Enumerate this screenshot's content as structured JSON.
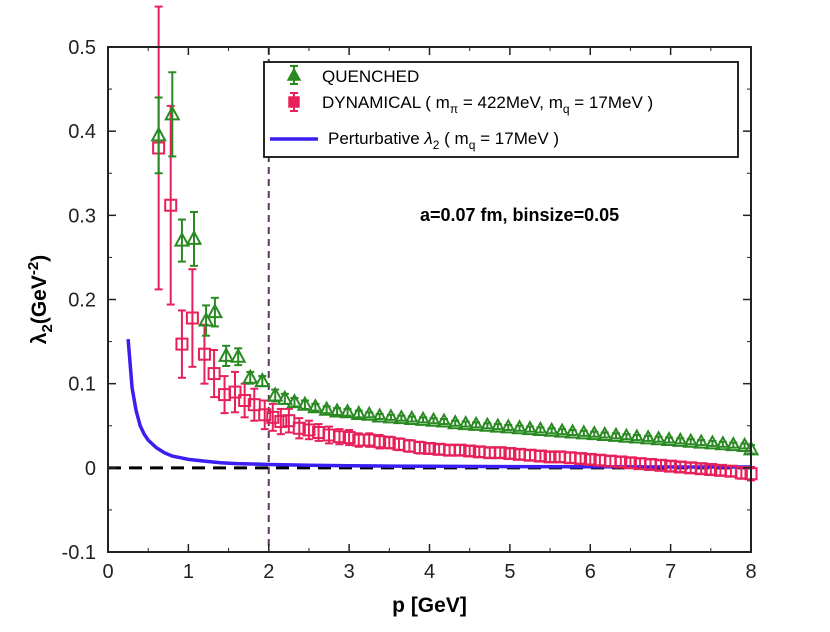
{
  "chart_data": {
    "type": "scatter",
    "title": "",
    "xlabel": "p [GeV]",
    "ylabel_main": "λ",
    "ylabel_sub": "2",
    "ylabel_unit_open": "(GeV",
    "ylabel_unit_exp": "-2",
    "ylabel_unit_close": ")",
    "xlim": [
      0,
      8
    ],
    "ylim": [
      -0.1,
      0.5
    ],
    "x_ticks": [
      0,
      1,
      2,
      3,
      4,
      5,
      6,
      7,
      8
    ],
    "y_ticks": [
      -0.1,
      0,
      0.1,
      0.2,
      0.3,
      0.4,
      0.5
    ],
    "y_tick_labels": [
      "-0.1",
      "0",
      "0.1",
      "0.2",
      "0.3",
      "0.4",
      "0.5"
    ],
    "grid": false,
    "legend_position": "top-right",
    "annotation": "a=0.07 fm, binsize=0.05",
    "vertical_reference_x": 2,
    "horizontal_reference_y": 0,
    "colors": {
      "quenched": "#2a8a22",
      "dynamical": "#e8205a",
      "perturbative": "#3a1ef2",
      "zero_line": "#000000",
      "vline": "#5a3a5a"
    },
    "legend": {
      "quenched": "QUENCHED",
      "dynamical_prefix": "DYNAMICAL  ( m",
      "dynamical_sub1": "π",
      "dynamical_mid": " = 422MeV, m",
      "dynamical_sub2": "q",
      "dynamical_suffix": " = 17MeV )",
      "perturbative_prefix": "Perturbative ",
      "perturbative_lambda": "λ",
      "perturbative_sub": "2",
      "perturbative_mid": " ( m",
      "perturbative_sub2": "q",
      "perturbative_suffix": " = 17MeV )"
    },
    "series": [
      {
        "name": "QUENCHED",
        "marker": "triangle",
        "x": [
          0.63,
          0.8,
          0.92,
          1.07,
          1.22,
          1.33,
          1.47,
          1.62,
          1.77,
          1.92,
          2.08,
          2.2,
          2.32,
          2.45,
          2.58,
          2.72,
          2.85,
          2.98,
          3.12,
          3.25,
          3.38,
          3.52,
          3.65,
          3.78,
          3.92,
          4.05,
          4.18,
          4.32,
          4.45,
          4.58,
          4.72,
          4.85,
          4.98,
          5.12,
          5.25,
          5.38,
          5.52,
          5.65,
          5.78,
          5.92,
          6.05,
          6.18,
          6.32,
          6.45,
          6.58,
          6.72,
          6.85,
          6.98,
          7.12,
          7.25,
          7.38,
          7.52,
          7.65,
          7.78,
          7.92,
          8.0
        ],
        "y": [
          0.395,
          0.42,
          0.27,
          0.272,
          0.175,
          0.185,
          0.133,
          0.132,
          0.107,
          0.103,
          0.086,
          0.082,
          0.078,
          0.075,
          0.072,
          0.069,
          0.067,
          0.066,
          0.064,
          0.063,
          0.061,
          0.06,
          0.059,
          0.058,
          0.057,
          0.056,
          0.055,
          0.053,
          0.052,
          0.051,
          0.05,
          0.049,
          0.048,
          0.047,
          0.046,
          0.045,
          0.044,
          0.043,
          0.042,
          0.041,
          0.04,
          0.039,
          0.038,
          0.037,
          0.036,
          0.035,
          0.034,
          0.033,
          0.032,
          0.031,
          0.03,
          0.029,
          0.028,
          0.027,
          0.026,
          0.022
        ],
        "err": [
          0.045,
          0.05,
          0.025,
          0.032,
          0.018,
          0.017,
          0.012,
          0.01,
          0.007,
          0.006,
          0.007,
          0.006,
          0.005,
          0.005,
          0.004,
          0.004,
          0.004,
          0.004,
          0.004,
          0.003,
          0.003,
          0.003,
          0.003,
          0.003,
          0.003,
          0.003,
          0.003,
          0.003,
          0.003,
          0.003,
          0.003,
          0.003,
          0.003,
          0.003,
          0.003,
          0.003,
          0.003,
          0.003,
          0.003,
          0.003,
          0.003,
          0.003,
          0.003,
          0.003,
          0.003,
          0.003,
          0.003,
          0.003,
          0.003,
          0.003,
          0.003,
          0.003,
          0.003,
          0.003,
          0.003,
          0.005
        ]
      },
      {
        "name": "DYNAMICAL",
        "marker": "square",
        "x": [
          0.63,
          0.78,
          0.92,
          1.05,
          1.2,
          1.32,
          1.45,
          1.58,
          1.7,
          1.82,
          1.95,
          2.05,
          2.15,
          2.25,
          2.38,
          2.5,
          2.62,
          2.75,
          2.88,
          3.0,
          3.12,
          3.25,
          3.38,
          3.5,
          3.62,
          3.75,
          3.88,
          4.0,
          4.12,
          4.25,
          4.38,
          4.5,
          4.62,
          4.75,
          4.88,
          5.0,
          5.12,
          5.25,
          5.38,
          5.5,
          5.62,
          5.75,
          5.88,
          6.0,
          6.12,
          6.25,
          6.38,
          6.5,
          6.62,
          6.75,
          6.88,
          7.0,
          7.12,
          7.25,
          7.38,
          7.5,
          7.62,
          7.75,
          7.88,
          8.0
        ],
        "y": [
          0.38,
          0.312,
          0.147,
          0.178,
          0.135,
          0.112,
          0.087,
          0.09,
          0.08,
          0.075,
          0.063,
          0.06,
          0.055,
          0.056,
          0.047,
          0.045,
          0.042,
          0.039,
          0.037,
          0.036,
          0.033,
          0.033,
          0.031,
          0.03,
          0.028,
          0.026,
          0.024,
          0.023,
          0.022,
          0.021,
          0.021,
          0.02,
          0.019,
          0.018,
          0.018,
          0.017,
          0.016,
          0.015,
          0.014,
          0.013,
          0.013,
          0.012,
          0.011,
          0.01,
          0.009,
          0.008,
          0.007,
          0.006,
          0.005,
          0.004,
          0.003,
          0.002,
          0.001,
          0.0,
          -0.001,
          -0.002,
          -0.003,
          -0.004,
          -0.006,
          -0.007
        ],
        "err": [
          0.168,
          0.118,
          0.04,
          0.058,
          0.035,
          0.028,
          0.022,
          0.024,
          0.02,
          0.019,
          0.017,
          0.016,
          0.015,
          0.014,
          0.012,
          0.011,
          0.01,
          0.01,
          0.009,
          0.009,
          0.008,
          0.008,
          0.008,
          0.007,
          0.007,
          0.007,
          0.007,
          0.006,
          0.006,
          0.006,
          0.006,
          0.006,
          0.006,
          0.006,
          0.006,
          0.006,
          0.006,
          0.006,
          0.006,
          0.006,
          0.006,
          0.006,
          0.006,
          0.006,
          0.006,
          0.006,
          0.006,
          0.006,
          0.006,
          0.006,
          0.006,
          0.006,
          0.006,
          0.006,
          0.006,
          0.006,
          0.006,
          0.006,
          0.007,
          0.008
        ]
      },
      {
        "name": "Perturbative λ2 ( mq = 17MeV )",
        "marker": "line",
        "x": [
          0.25,
          0.3,
          0.35,
          0.4,
          0.45,
          0.5,
          0.6,
          0.7,
          0.8,
          0.9,
          1.0,
          1.2,
          1.4,
          1.6,
          1.8,
          2.0,
          2.5,
          3.0,
          3.5,
          4.0,
          5.0,
          6.0,
          7.0,
          8.0
        ],
        "y": [
          0.153,
          0.095,
          0.068,
          0.05,
          0.04,
          0.033,
          0.024,
          0.018,
          0.014,
          0.012,
          0.01,
          0.008,
          0.006,
          0.005,
          0.0045,
          0.004,
          0.003,
          0.0025,
          0.002,
          0.0018,
          0.0015,
          0.0012,
          0.001,
          0.001
        ]
      }
    ]
  }
}
